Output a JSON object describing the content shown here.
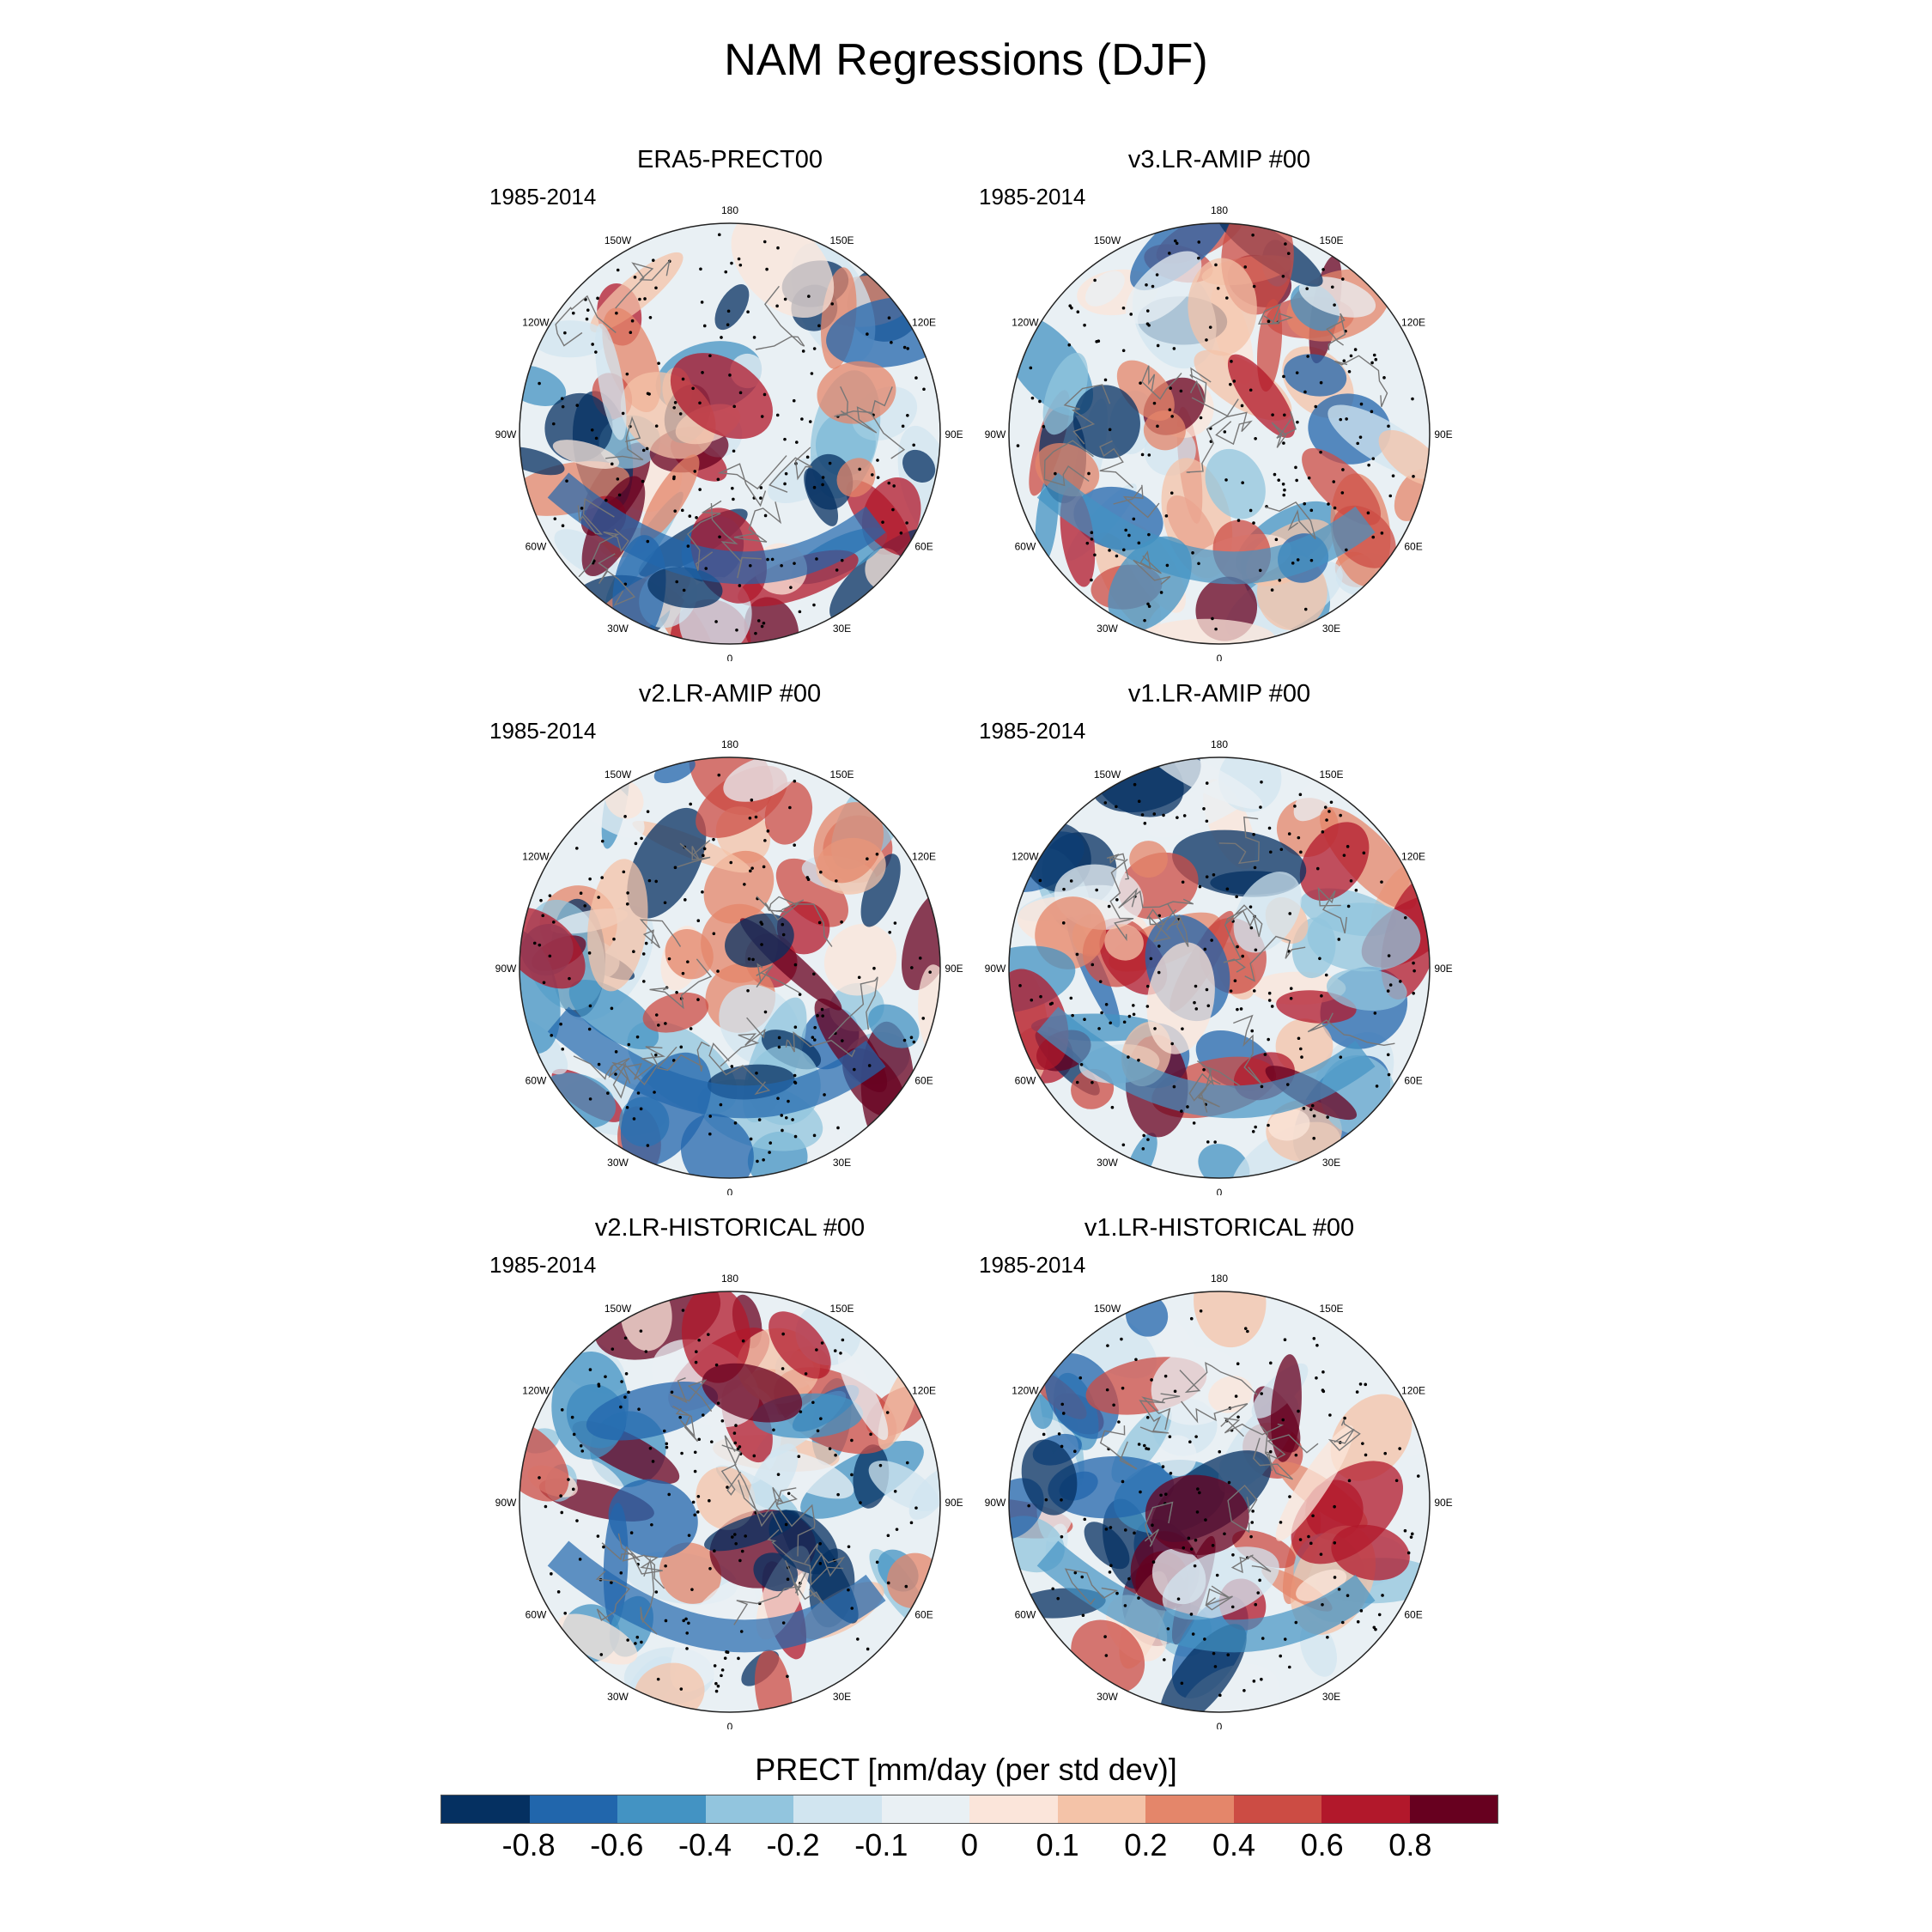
{
  "title": "NAM Regressions (DJF)",
  "panels": [
    {
      "name": "ERA5-PRECT00",
      "years": "1985-2014"
    },
    {
      "name": "v3.LR-AMIP  #00",
      "years": "1985-2014"
    },
    {
      "name": "v2.LR-AMIP  #00",
      "years": "1985-2014"
    },
    {
      "name": "v1.LR-AMIP  #00",
      "years": "1985-2014"
    },
    {
      "name": "v2.LR-HISTORICAL  #00",
      "years": "1985-2014"
    },
    {
      "name": "v1.LR-HISTORICAL  #00",
      "years": "1985-2014"
    }
  ],
  "longitude_labels": [
    "180",
    "150E",
    "120E",
    "90E",
    "60E",
    "30E",
    "0",
    "30W",
    "60W",
    "90W",
    "120W",
    "150W"
  ],
  "colorbar": {
    "title": "PRECT [mm/day (per std dev)]",
    "colors": [
      "#053061",
      "#2166ac",
      "#4393c3",
      "#92c5de",
      "#d1e5f0",
      "#e9f0f4",
      "#fbe5da",
      "#f4c3a8",
      "#e4866a",
      "#cc4c44",
      "#b2182b",
      "#67001f"
    ],
    "tick_labels": [
      "-0.8",
      "-0.6",
      "-0.4",
      "-0.2",
      "-0.1",
      "0",
      "0.1",
      "0.2",
      "0.4",
      "0.6",
      "0.8"
    ]
  }
}
